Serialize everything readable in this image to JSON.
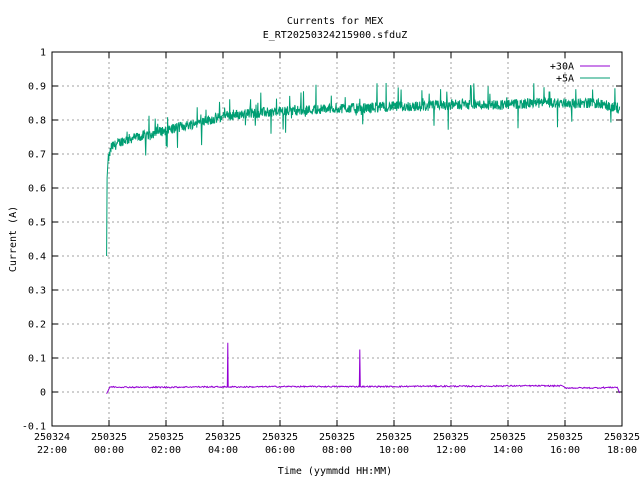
{
  "chart_data": {
    "type": "line",
    "title": "Currents for MEX",
    "subtitle": "E_RT20250324215900.sfduZ",
    "xlabel": "Time (yymmdd HH:MM)",
    "ylabel": "Current (A)",
    "xlim": [
      "250324 22:00",
      "250325 18:00"
    ],
    "ylim": [
      -0.1,
      1
    ],
    "grid": true,
    "legend_position": "top-right",
    "y_ticks": [
      "-0.1",
      "0",
      "0.1",
      "0.2",
      "0.3",
      "0.4",
      "0.5",
      "0.6",
      "0.7",
      "0.8",
      "0.9",
      "1"
    ],
    "x_ticks": [
      {
        "date": "250324",
        "time": "22:00"
      },
      {
        "date": "250325",
        "time": "00:00"
      },
      {
        "date": "250325",
        "time": "02:00"
      },
      {
        "date": "250325",
        "time": "04:00"
      },
      {
        "date": "250325",
        "time": "06:00"
      },
      {
        "date": "250325",
        "time": "08:00"
      },
      {
        "date": "250325",
        "time": "10:00"
      },
      {
        "date": "250325",
        "time": "12:00"
      },
      {
        "date": "250325",
        "time": "14:00"
      },
      {
        "date": "250325",
        "time": "16:00"
      },
      {
        "date": "250325",
        "time": "18:00"
      }
    ],
    "series": [
      {
        "name": "+30A",
        "color": "#9400d3",
        "points": [
          [
            "250324 23:55",
            -0.005
          ],
          [
            "250325 00:02",
            0.015
          ],
          [
            "250325 01:00",
            0.014
          ],
          [
            "250325 02:00",
            0.014
          ],
          [
            "250325 03:00",
            0.015
          ],
          [
            "250325 04:09",
            0.015
          ],
          [
            "250325 04:10",
            0.145
          ],
          [
            "250325 04:11",
            0.015
          ],
          [
            "250325 05:00",
            0.015
          ],
          [
            "250325 06:00",
            0.016
          ],
          [
            "250325 07:00",
            0.016
          ],
          [
            "250325 08:00",
            0.016
          ],
          [
            "250325 08:47",
            0.016
          ],
          [
            "250325 08:48",
            0.125
          ],
          [
            "250325 08:49",
            0.016
          ],
          [
            "250325 10:00",
            0.016
          ],
          [
            "250325 11:00",
            0.017
          ],
          [
            "250325 12:00",
            0.017
          ],
          [
            "250325 13:00",
            0.017
          ],
          [
            "250325 14:00",
            0.018
          ],
          [
            "250325 15:00",
            0.018
          ],
          [
            "250325 15:55",
            0.018
          ],
          [
            "250325 16:00",
            0.012
          ],
          [
            "250325 17:00",
            0.012
          ],
          [
            "250325 17:50",
            0.014
          ],
          [
            "250325 17:55",
            -0.003
          ]
        ]
      },
      {
        "name": "+5A",
        "color": "#009e73",
        "points": [
          [
            "250324 23:55",
            0.4
          ],
          [
            "250324 23:56",
            0.63
          ],
          [
            "250324 23:58",
            0.68
          ],
          [
            "250325 00:05",
            0.72
          ],
          [
            "250325 00:30",
            0.74
          ],
          [
            "250325 01:00",
            0.75
          ],
          [
            "250325 02:00",
            0.77
          ],
          [
            "250325 03:00",
            0.79
          ],
          [
            "250325 04:00",
            0.81
          ],
          [
            "250325 05:00",
            0.82
          ],
          [
            "250325 06:00",
            0.825
          ],
          [
            "250325 07:00",
            0.83
          ],
          [
            "250325 08:00",
            0.835
          ],
          [
            "250325 09:00",
            0.835
          ],
          [
            "250325 10:00",
            0.84
          ],
          [
            "250325 11:00",
            0.84
          ],
          [
            "250325 12:00",
            0.845
          ],
          [
            "250325 13:00",
            0.845
          ],
          [
            "250325 14:00",
            0.845
          ],
          [
            "250325 15:00",
            0.85
          ],
          [
            "250325 16:00",
            0.85
          ],
          [
            "250325 17:00",
            0.85
          ],
          [
            "250325 17:55",
            0.835
          ]
        ]
      }
    ]
  }
}
